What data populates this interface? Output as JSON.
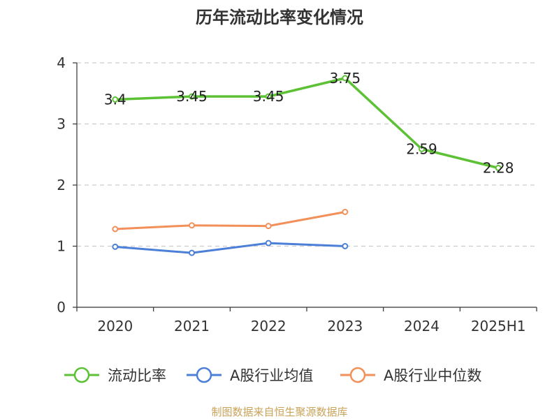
{
  "chart_data": {
    "type": "line",
    "title": "历年流动比率变化情况",
    "categories": [
      "2020",
      "2021",
      "2022",
      "2023",
      "2024",
      "2025H1"
    ],
    "ylim": [
      0,
      4
    ],
    "yticks": [
      "0",
      "1",
      "2",
      "3",
      "4"
    ],
    "grid": "horizontal-dashed",
    "legend_position": "bottom",
    "series": [
      {
        "name": "流动比率",
        "color": "#5cc134",
        "values": [
          3.4,
          3.45,
          3.45,
          3.75,
          2.59,
          2.28
        ],
        "labels": [
          "3.4",
          "3.45",
          "3.45",
          "3.75",
          "2.59",
          "2.28"
        ]
      },
      {
        "name": "A股行业均值",
        "color": "#4b7fd8",
        "values": [
          0.99,
          0.89,
          1.05,
          1.0,
          null,
          null
        ]
      },
      {
        "name": "A股行业中位数",
        "color": "#f3905a",
        "values": [
          1.28,
          1.34,
          1.33,
          1.56,
          null,
          null
        ]
      }
    ],
    "source": "制图数据来自恒生聚源数据库"
  }
}
